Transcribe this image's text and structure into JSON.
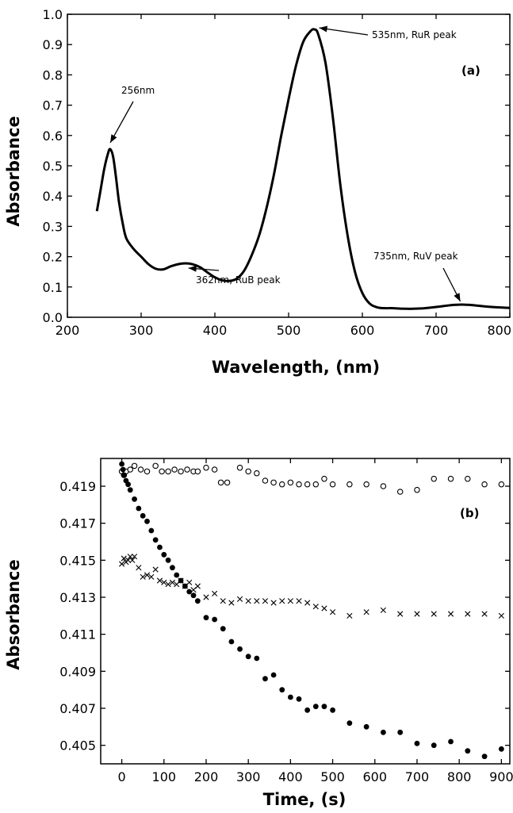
{
  "chart_data": [
    {
      "type": "line",
      "panel_label": "(a)",
      "xlabel": "Wavelength, (nm)",
      "ylabel": "Absorbance",
      "xlim": [
        200,
        800
      ],
      "ylim": [
        0.0,
        1.0
      ],
      "xticks": [
        200,
        300,
        400,
        500,
        600,
        700,
        800
      ],
      "xtick_labels": [
        "200",
        "300",
        "400",
        "500",
        "600",
        "700",
        "800"
      ],
      "yticks": [
        0.0,
        0.1,
        0.2,
        0.3,
        0.4,
        0.5,
        0.6,
        0.7,
        0.8,
        0.9,
        1.0
      ],
      "ytick_labels": [
        "0.0",
        "0.1",
        "0.2",
        "0.3",
        "0.4",
        "0.5",
        "0.6",
        "0.7",
        "0.8",
        "0.9",
        "1.0"
      ],
      "grid": false,
      "series": [
        {
          "x": [
            240,
            245,
            250,
            255,
            258,
            262,
            266,
            270,
            275,
            280,
            290,
            300,
            310,
            320,
            330,
            340,
            350,
            360,
            370,
            380,
            390,
            400,
            410,
            420,
            430,
            440,
            450,
            460,
            470,
            480,
            490,
            500,
            510,
            520,
            530,
            535,
            540,
            550,
            560,
            570,
            580,
            590,
            600,
            610,
            620,
            630,
            640,
            660,
            680,
            700,
            720,
            735,
            750,
            770,
            790,
            800
          ],
          "y": [
            0.35,
            0.42,
            0.49,
            0.54,
            0.555,
            0.53,
            0.46,
            0.38,
            0.31,
            0.26,
            0.225,
            0.2,
            0.175,
            0.16,
            0.158,
            0.168,
            0.175,
            0.178,
            0.175,
            0.165,
            0.148,
            0.132,
            0.122,
            0.12,
            0.128,
            0.155,
            0.205,
            0.27,
            0.36,
            0.47,
            0.6,
            0.72,
            0.83,
            0.91,
            0.945,
            0.95,
            0.935,
            0.84,
            0.66,
            0.44,
            0.27,
            0.15,
            0.08,
            0.045,
            0.033,
            0.03,
            0.03,
            0.028,
            0.029,
            0.034,
            0.04,
            0.042,
            0.04,
            0.035,
            0.032,
            0.031
          ]
        }
      ],
      "annotations": [
        {
          "text": "256nm",
          "x": 256,
          "y": 0.555
        },
        {
          "text": "535nm, RuR peak",
          "x": 535,
          "y": 0.95
        },
        {
          "text": "362nm, RuB peak",
          "x": 362,
          "y": 0.178
        },
        {
          "text": "735nm, RuV peak",
          "x": 735,
          "y": 0.042
        }
      ]
    },
    {
      "type": "scatter",
      "panel_label": "(b)",
      "xlabel": "Time, (s)",
      "ylabel": "Absorbance",
      "xlim": [
        -50,
        920
      ],
      "ylim": [
        0.404,
        0.4205
      ],
      "xticks": [
        0,
        100,
        200,
        300,
        400,
        500,
        600,
        700,
        800,
        900
      ],
      "xtick_labels": [
        "0",
        "100",
        "200",
        "300",
        "400",
        "500",
        "600",
        "700",
        "800",
        "900"
      ],
      "yticks": [
        0.405,
        0.407,
        0.409,
        0.411,
        0.413,
        0.415,
        0.417,
        0.419
      ],
      "ytick_labels": [
        "0.405",
        "0.407",
        "0.409",
        "0.411",
        "0.413",
        "0.415",
        "0.417",
        "0.419"
      ],
      "grid": false,
      "series": [
        {
          "marker": "open-circle",
          "x": [
            0,
            5,
            10,
            20,
            30,
            45,
            60,
            80,
            95,
            110,
            125,
            140,
            155,
            170,
            180,
            200,
            220,
            235,
            250,
            280,
            300,
            320,
            340,
            360,
            380,
            400,
            420,
            440,
            460,
            480,
            500,
            540,
            580,
            620,
            660,
            700,
            740,
            780,
            820,
            860,
            900
          ],
          "y": [
            0.4198,
            0.4196,
            0.4198,
            0.4199,
            0.4201,
            0.4199,
            0.4198,
            0.4201,
            0.4198,
            0.4198,
            0.4199,
            0.4198,
            0.4199,
            0.4198,
            0.4198,
            0.42,
            0.4199,
            0.4192,
            0.4192,
            0.42,
            0.4198,
            0.4197,
            0.4193,
            0.4192,
            0.4191,
            0.4192,
            0.4191,
            0.4191,
            0.4191,
            0.4194,
            0.4191,
            0.4191,
            0.4191,
            0.419,
            0.4187,
            0.4188,
            0.4194,
            0.4194,
            0.4194,
            0.4191,
            0.4191
          ]
        },
        {
          "marker": "filled-circle",
          "x": [
            0,
            3,
            6,
            10,
            15,
            20,
            30,
            40,
            50,
            60,
            70,
            80,
            90,
            100,
            110,
            120,
            130,
            140,
            150,
            160,
            170,
            180,
            200,
            220,
            240,
            260,
            280,
            300,
            320,
            340,
            360,
            380,
            400,
            420,
            440,
            460,
            480,
            500,
            540,
            580,
            620,
            660,
            700,
            740,
            780,
            820,
            860,
            900
          ],
          "y": [
            0.4202,
            0.4199,
            0.4196,
            0.4193,
            0.4191,
            0.4188,
            0.4183,
            0.4178,
            0.4174,
            0.4171,
            0.4166,
            0.4161,
            0.4157,
            0.4153,
            0.415,
            0.4146,
            0.4142,
            0.4139,
            0.4136,
            0.4133,
            0.4131,
            0.4128,
            0.4119,
            0.4118,
            0.4113,
            0.4106,
            0.4102,
            0.4098,
            0.4097,
            0.4086,
            0.4088,
            0.408,
            0.4076,
            0.4075,
            0.4069,
            0.4071,
            0.4071,
            0.4069,
            0.4062,
            0.406,
            0.4057,
            0.4057,
            0.4051,
            0.405,
            0.4052,
            0.4047,
            0.4044,
            0.4048
          ]
        },
        {
          "marker": "cross",
          "x": [
            0,
            5,
            10,
            15,
            20,
            25,
            30,
            40,
            50,
            60,
            70,
            80,
            90,
            100,
            110,
            120,
            130,
            140,
            150,
            160,
            170,
            180,
            200,
            220,
            240,
            260,
            280,
            300,
            320,
            340,
            360,
            380,
            400,
            420,
            440,
            460,
            480,
            500,
            540,
            580,
            620,
            660,
            700,
            740,
            780,
            820,
            860,
            900
          ],
          "y": [
            0.4148,
            0.4151,
            0.4149,
            0.415,
            0.4152,
            0.415,
            0.4152,
            0.4146,
            0.4141,
            0.4142,
            0.4141,
            0.4145,
            0.4139,
            0.4138,
            0.4137,
            0.4138,
            0.4137,
            0.4139,
            0.4136,
            0.4138,
            0.4134,
            0.4136,
            0.413,
            0.4132,
            0.4128,
            0.4127,
            0.4129,
            0.4128,
            0.4128,
            0.4128,
            0.4127,
            0.4128,
            0.4128,
            0.4128,
            0.4127,
            0.4125,
            0.4124,
            0.4122,
            0.412,
            0.4122,
            0.4123,
            0.4121,
            0.4121,
            0.4121,
            0.4121,
            0.4121,
            0.4121,
            0.412
          ]
        }
      ]
    }
  ]
}
